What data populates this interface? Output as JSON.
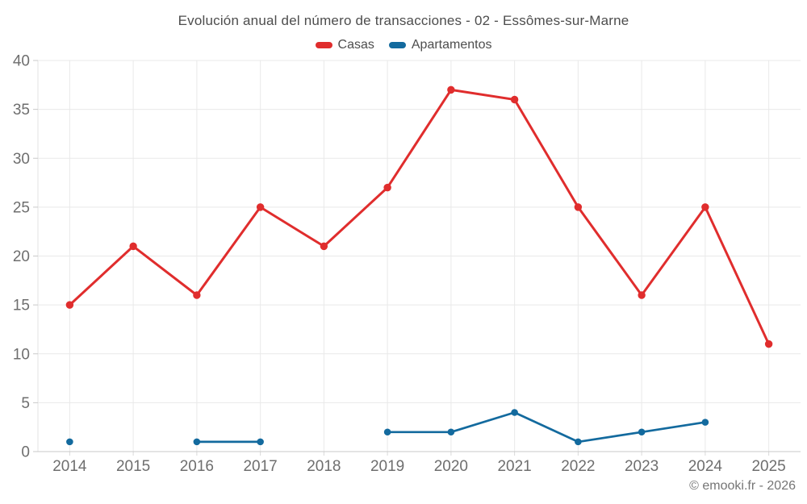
{
  "title": "Evolución anual del número de transacciones - 02 - Essômes-sur-Marne",
  "footer": "© emooki.fr - 2026",
  "colors": {
    "casas": "#e02d2d",
    "apartamentos": "#136a9e",
    "grid": "#e9e9e9",
    "axis_line": "#c9c9c9",
    "axis_label": "#6e6e6e",
    "title_text": "#4d4d4d"
  },
  "chart_data": {
    "type": "line",
    "title": "Evolución anual del número de transacciones - 02 - Essômes-sur-Marne",
    "categories": [
      "2014",
      "2015",
      "2016",
      "2017",
      "2018",
      "2019",
      "2020",
      "2021",
      "2022",
      "2023",
      "2024",
      "2025"
    ],
    "series": [
      {
        "name": "Casas",
        "color": "#e02d2d",
        "values": [
          15,
          21,
          16,
          25,
          21,
          27,
          37,
          36,
          25,
          16,
          25,
          11
        ]
      },
      {
        "name": "Apartamentos",
        "color": "#136a9e",
        "values": [
          1,
          null,
          1,
          1,
          null,
          2,
          2,
          4,
          1,
          2,
          3,
          null
        ]
      }
    ],
    "xlabel": "",
    "ylabel": "",
    "ylim": [
      0,
      40
    ],
    "ytick_step": 5,
    "y_tick_labels": [
      "0",
      "5",
      "10",
      "15",
      "20",
      "25",
      "30",
      "35",
      "40"
    ],
    "grid": true,
    "legend_position": "top"
  }
}
